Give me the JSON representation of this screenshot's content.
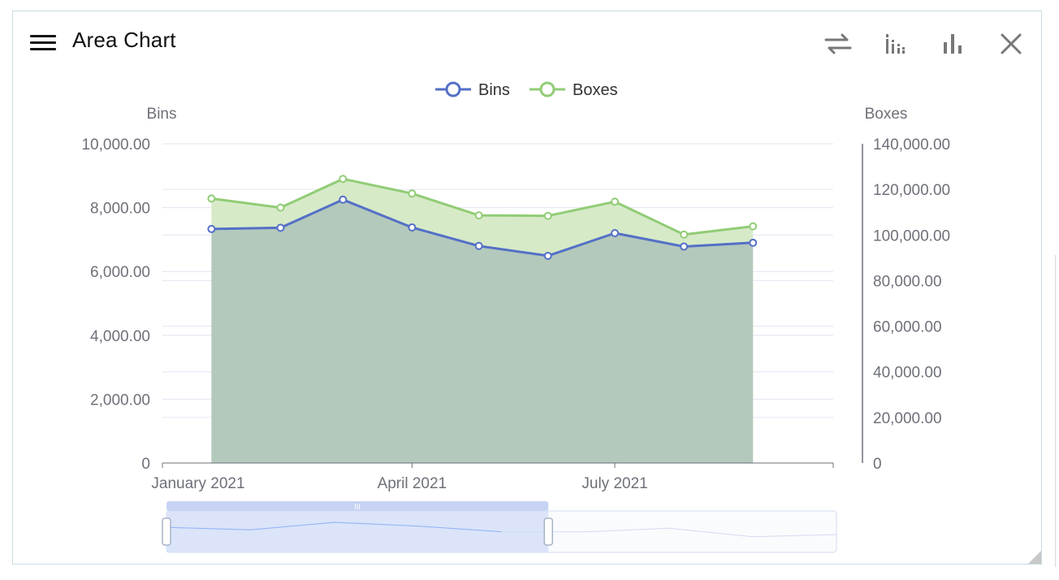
{
  "header": {
    "title": "Area Chart",
    "icons": [
      "menu-icon",
      "swap-icon",
      "stacked-bar-icon",
      "bar-chart-icon",
      "close-icon"
    ]
  },
  "colors": {
    "bins": "#5470c6",
    "boxes": "#91cc75",
    "bins_fill": "#b3c9bc",
    "boxes_fill": "#d6eac8",
    "axis": "#6e7079",
    "grid": "#e0e6f1"
  },
  "chart_data": {
    "type": "area",
    "title": "Area Chart",
    "x": [
      "2021-01-01",
      "2021-02-01",
      "2021-03-01",
      "2021-04-01",
      "2021-05-01",
      "2021-06-01",
      "2021-07-01",
      "2021-08-01",
      "2021-09-01"
    ],
    "x_ticks": [
      "January 2021",
      "April 2021",
      "July 2021"
    ],
    "series": [
      {
        "name": "Bins",
        "axis": "left",
        "values": [
          7330,
          7370,
          8250,
          7380,
          6800,
          6490,
          7200,
          6780,
          6900
        ]
      },
      {
        "name": "Boxes",
        "axis": "right",
        "values": [
          116000,
          112000,
          124600,
          118200,
          108600,
          108400,
          114600,
          100200,
          103800
        ]
      }
    ],
    "yaxis_left": {
      "label": "Bins",
      "range": [
        0,
        10000
      ],
      "ticks": [
        "0",
        "2,000.00",
        "4,000.00",
        "6,000.00",
        "8,000.00",
        "10,000.00"
      ]
    },
    "yaxis_right": {
      "label": "Boxes",
      "range": [
        0,
        140000
      ],
      "ticks": [
        "0",
        "20,000.00",
        "40,000.00",
        "60,000.00",
        "80,000.00",
        "100,000.00",
        "120,000.00",
        "140,000.00"
      ]
    },
    "legend": {
      "position": "top-center",
      "items": [
        "Bins",
        "Boxes"
      ]
    },
    "grid": true,
    "data_zoom": {
      "start": 0.0,
      "end": 0.57
    }
  }
}
